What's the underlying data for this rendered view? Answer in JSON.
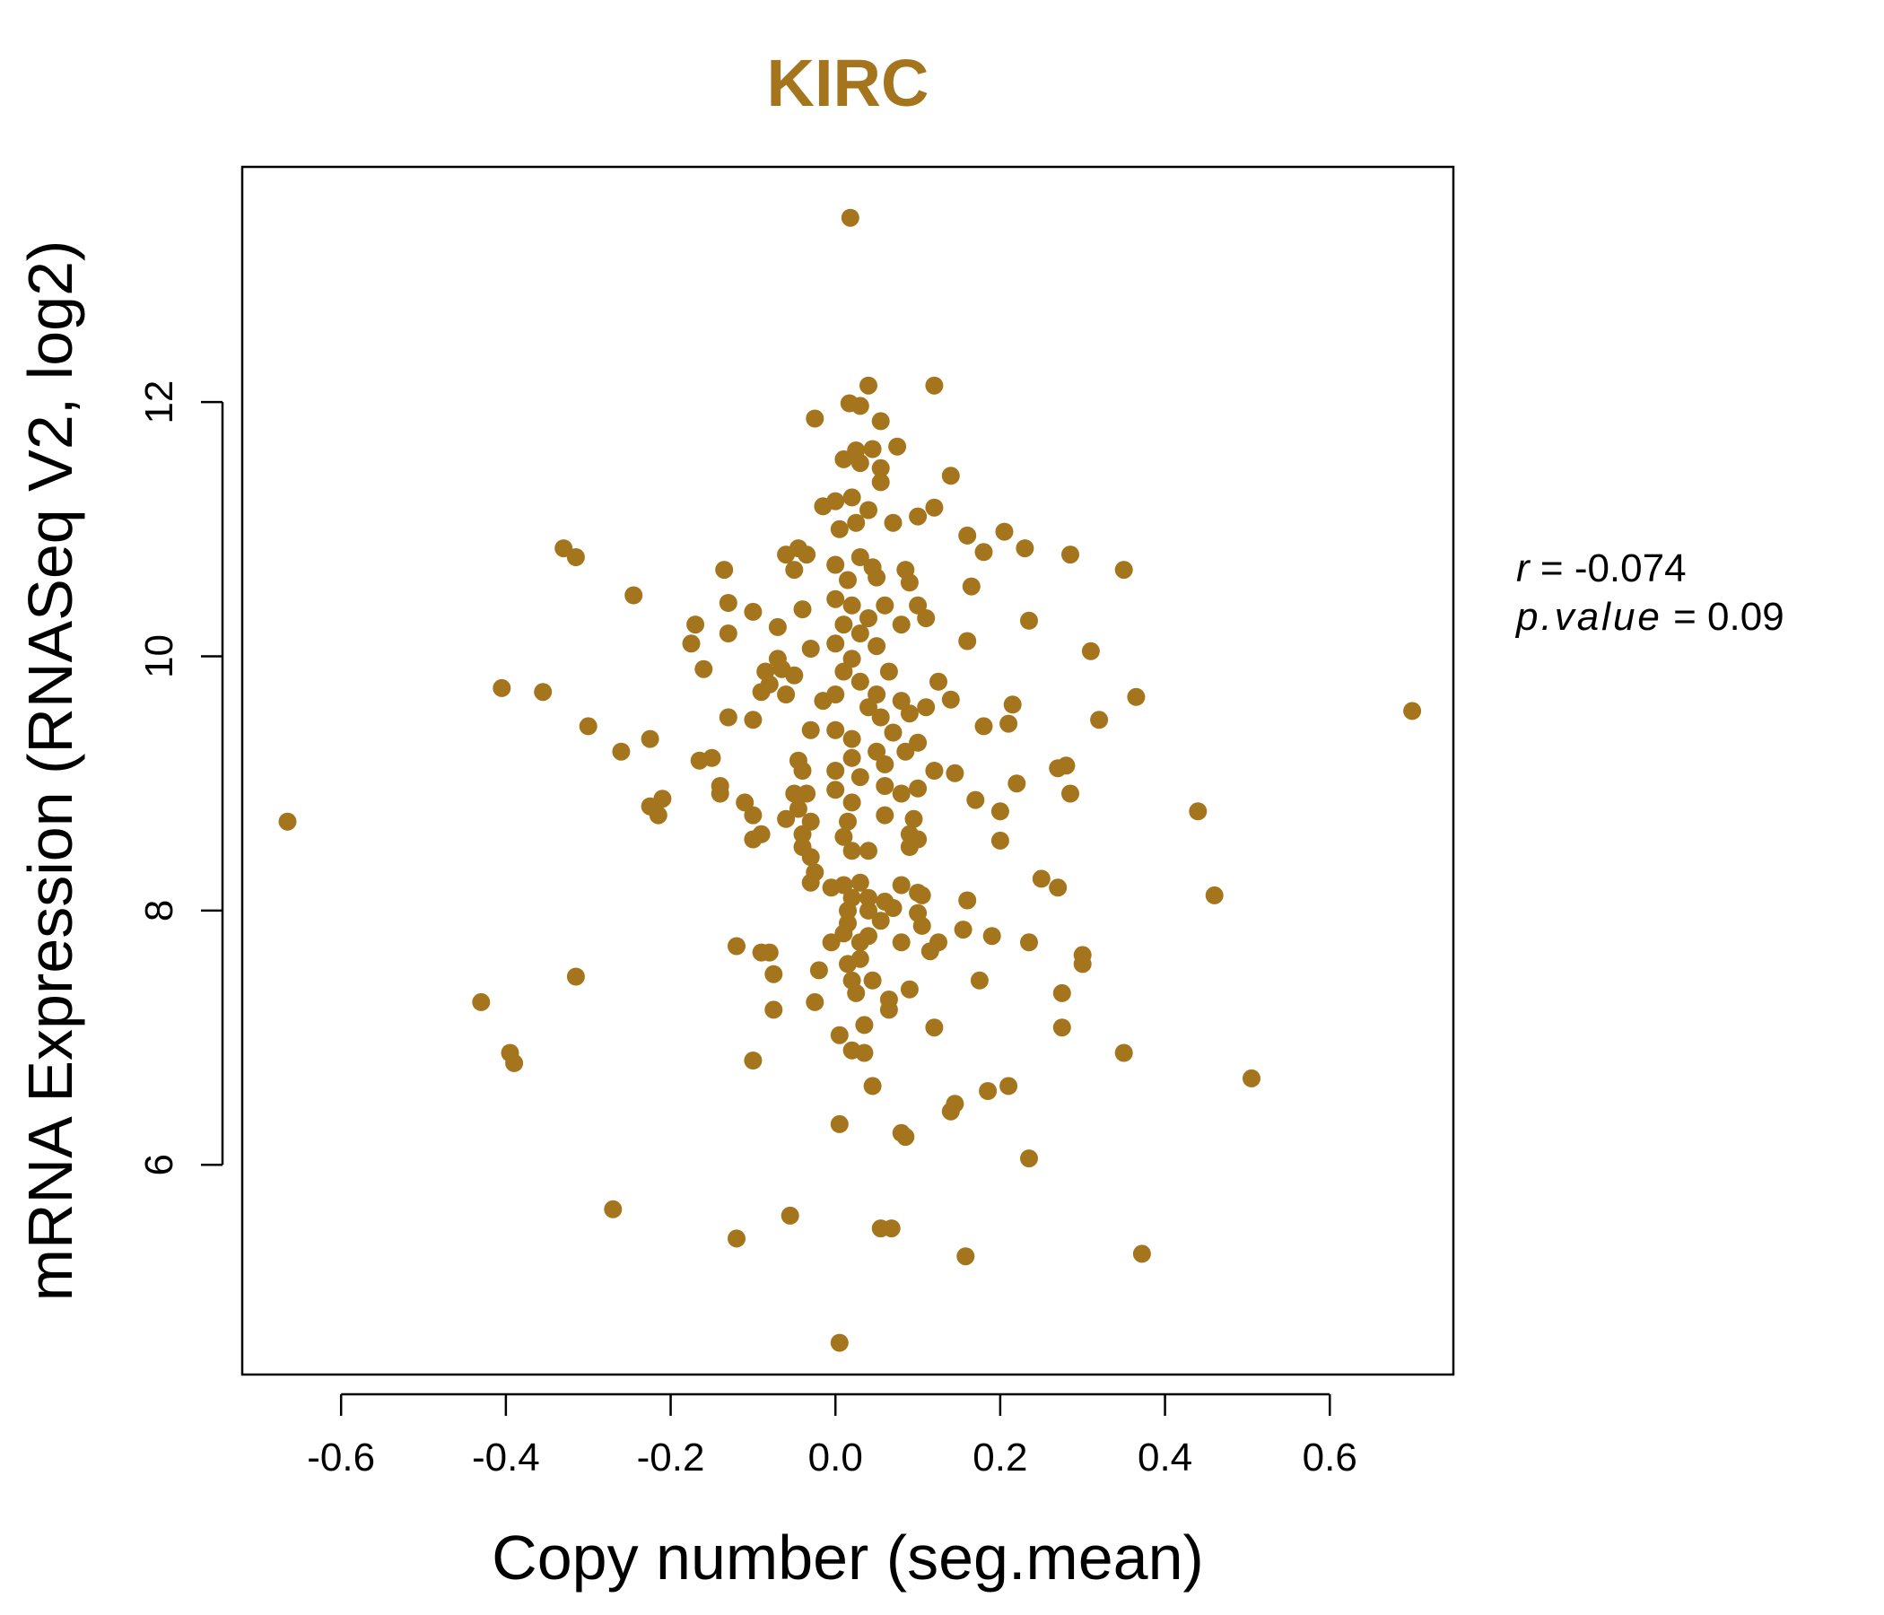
{
  "accent_color": "#A5751E",
  "chart_data": {
    "type": "scatter",
    "title": "KIRC",
    "xlabel": "Copy number (seg.mean)",
    "ylabel": "mRNA Expression (RNASeq V2, log2)",
    "xlim": [
      -0.72,
      0.75
    ],
    "ylim": [
      4.35,
      13.85
    ],
    "xticks": [
      -0.6,
      -0.4,
      -0.2,
      0.0,
      0.2,
      0.4,
      0.6
    ],
    "xtick_labels": [
      "-0.6",
      "-0.4",
      "-0.2",
      "0.0",
      "0.2",
      "0.4",
      "0.6"
    ],
    "yticks": [
      6,
      8,
      10,
      12
    ],
    "ytick_labels": [
      "6",
      "8",
      "10",
      "12"
    ],
    "grid": false,
    "stats": {
      "r_label": "r",
      "r_value": "-0.074",
      "p_label": "p.value",
      "p_value": "0.09"
    },
    "series": [
      {
        "color": "#A5751E",
        "points": [
          [
            0.018,
            13.45
          ],
          [
            0.04,
            12.13
          ],
          [
            0.12,
            12.13
          ],
          [
            0.017,
            11.99
          ],
          [
            0.03,
            11.97
          ],
          [
            -0.025,
            11.87
          ],
          [
            0.055,
            11.85
          ],
          [
            0.025,
            11.62
          ],
          [
            0.045,
            11.63
          ],
          [
            0.075,
            11.65
          ],
          [
            0.01,
            11.55
          ],
          [
            0.03,
            11.52
          ],
          [
            0.055,
            11.48
          ],
          [
            0.055,
            11.37
          ],
          [
            0.14,
            11.42
          ],
          [
            0.0,
            11.22
          ],
          [
            0.02,
            11.25
          ],
          [
            0.04,
            11.15
          ],
          [
            -0.015,
            11.18
          ],
          [
            0.12,
            11.17
          ],
          [
            0.1,
            11.1
          ],
          [
            0.07,
            11.05
          ],
          [
            0.025,
            11.05
          ],
          [
            0.005,
            11.0
          ],
          [
            0.205,
            10.98
          ],
          [
            0.16,
            10.95
          ],
          [
            -0.33,
            10.85
          ],
          [
            -0.315,
            10.78
          ],
          [
            -0.035,
            10.8
          ],
          [
            0.18,
            10.82
          ],
          [
            0.23,
            10.85
          ],
          [
            0.285,
            10.8
          ],
          [
            -0.06,
            10.8
          ],
          [
            -0.045,
            10.85
          ],
          [
            0.03,
            10.78
          ],
          [
            0.0,
            10.72
          ],
          [
            0.045,
            10.7
          ],
          [
            -0.135,
            10.68
          ],
          [
            -0.05,
            10.68
          ],
          [
            0.085,
            10.68
          ],
          [
            0.35,
            10.68
          ],
          [
            0.015,
            10.6
          ],
          [
            0.05,
            10.62
          ],
          [
            0.09,
            10.58
          ],
          [
            0.165,
            10.55
          ],
          [
            -0.245,
            10.48
          ],
          [
            -0.13,
            10.42
          ],
          [
            0.0,
            10.45
          ],
          [
            0.02,
            10.4
          ],
          [
            0.06,
            10.4
          ],
          [
            0.1,
            10.4
          ],
          [
            -0.04,
            10.37
          ],
          [
            -0.1,
            10.35
          ],
          [
            0.04,
            10.3
          ],
          [
            0.11,
            10.3
          ],
          [
            0.235,
            10.28
          ],
          [
            -0.17,
            10.25
          ],
          [
            -0.07,
            10.23
          ],
          [
            0.01,
            10.25
          ],
          [
            0.08,
            10.25
          ],
          [
            -0.13,
            10.18
          ],
          [
            0.03,
            10.18
          ],
          [
            -0.175,
            10.1
          ],
          [
            0.16,
            10.12
          ],
          [
            0.0,
            10.1
          ],
          [
            -0.03,
            10.06
          ],
          [
            0.05,
            10.08
          ],
          [
            0.31,
            10.04
          ],
          [
            -0.07,
            9.98
          ],
          [
            0.02,
            9.98
          ],
          [
            -0.16,
            9.9
          ],
          [
            -0.085,
            9.88
          ],
          [
            -0.065,
            9.9
          ],
          [
            -0.05,
            9.85
          ],
          [
            0.01,
            9.88
          ],
          [
            0.065,
            9.88
          ],
          [
            -0.08,
            9.78
          ],
          [
            0.03,
            9.8
          ],
          [
            0.125,
            9.8
          ],
          [
            -0.405,
            9.75
          ],
          [
            -0.355,
            9.72
          ],
          [
            -0.09,
            9.72
          ],
          [
            -0.06,
            9.7
          ],
          [
            0.0,
            9.7
          ],
          [
            0.05,
            9.7
          ],
          [
            0.14,
            9.66
          ],
          [
            0.365,
            9.68
          ],
          [
            -0.015,
            9.65
          ],
          [
            0.08,
            9.65
          ],
          [
            0.215,
            9.62
          ],
          [
            0.11,
            9.6
          ],
          [
            0.7,
            9.57
          ],
          [
            0.04,
            9.6
          ],
          [
            -0.13,
            9.52
          ],
          [
            -0.1,
            9.5
          ],
          [
            0.055,
            9.52
          ],
          [
            0.09,
            9.55
          ],
          [
            0.32,
            9.5
          ],
          [
            -0.3,
            9.45
          ],
          [
            0.18,
            9.45
          ],
          [
            0.21,
            9.47
          ],
          [
            0.0,
            9.42
          ],
          [
            -0.03,
            9.42
          ],
          [
            0.07,
            9.4
          ],
          [
            -0.225,
            9.35
          ],
          [
            0.02,
            9.35
          ],
          [
            0.1,
            9.32
          ],
          [
            -0.26,
            9.25
          ],
          [
            0.05,
            9.25
          ],
          [
            0.085,
            9.25
          ],
          [
            -0.15,
            9.2
          ],
          [
            -0.165,
            9.18
          ],
          [
            0.02,
            9.2
          ],
          [
            -0.045,
            9.18
          ],
          [
            0.06,
            9.15
          ],
          [
            0.27,
            9.12
          ],
          [
            0.28,
            9.14
          ],
          [
            -0.04,
            9.1
          ],
          [
            0.0,
            9.1
          ],
          [
            0.12,
            9.1
          ],
          [
            0.145,
            9.08
          ],
          [
            0.03,
            9.05
          ],
          [
            -0.14,
            8.98
          ],
          [
            0.06,
            8.98
          ],
          [
            0.1,
            8.96
          ],
          [
            0.22,
            9.0
          ],
          [
            -0.14,
            8.92
          ],
          [
            -0.05,
            8.92
          ],
          [
            -0.035,
            8.92
          ],
          [
            0.0,
            8.95
          ],
          [
            0.08,
            8.92
          ],
          [
            0.285,
            8.92
          ],
          [
            -0.21,
            8.88
          ],
          [
            -0.225,
            8.82
          ],
          [
            -0.11,
            8.85
          ],
          [
            0.17,
            8.87
          ],
          [
            0.02,
            8.85
          ],
          [
            -0.215,
            8.75
          ],
          [
            -0.1,
            8.75
          ],
          [
            -0.045,
            8.8
          ],
          [
            0.2,
            8.78
          ],
          [
            0.44,
            8.78
          ],
          [
            -0.06,
            8.72
          ],
          [
            -0.03,
            8.7
          ],
          [
            0.06,
            8.75
          ],
          [
            0.015,
            8.7
          ],
          [
            0.095,
            8.72
          ],
          [
            -0.665,
            8.7
          ],
          [
            -0.09,
            8.6
          ],
          [
            -0.04,
            8.6
          ],
          [
            0.09,
            8.6
          ],
          [
            -0.1,
            8.56
          ],
          [
            0.01,
            8.58
          ],
          [
            0.1,
            8.56
          ],
          [
            0.2,
            8.55
          ],
          [
            -0.04,
            8.5
          ],
          [
            0.09,
            8.5
          ],
          [
            0.02,
            8.47
          ],
          [
            0.04,
            8.47
          ],
          [
            -0.03,
            8.42
          ],
          [
            -0.025,
            8.3
          ],
          [
            0.25,
            8.25
          ],
          [
            -0.03,
            8.22
          ],
          [
            0.01,
            8.2
          ],
          [
            0.03,
            8.22
          ],
          [
            0.08,
            8.2
          ],
          [
            -0.005,
            8.18
          ],
          [
            0.27,
            8.18
          ],
          [
            0.1,
            8.14
          ],
          [
            0.105,
            8.12
          ],
          [
            0.46,
            8.12
          ],
          [
            0.02,
            8.1
          ],
          [
            0.04,
            8.1
          ],
          [
            0.06,
            8.07
          ],
          [
            0.16,
            8.08
          ],
          [
            0.015,
            8.0
          ],
          [
            0.04,
            8.0
          ],
          [
            0.07,
            8.02
          ],
          [
            0.1,
            7.98
          ],
          [
            0.015,
            7.9
          ],
          [
            0.055,
            7.92
          ],
          [
            0.105,
            7.88
          ],
          [
            0.155,
            7.85
          ],
          [
            0.19,
            7.8
          ],
          [
            0.01,
            7.82
          ],
          [
            0.04,
            7.8
          ],
          [
            -0.005,
            7.75
          ],
          [
            0.03,
            7.75
          ],
          [
            0.08,
            7.75
          ],
          [
            0.125,
            7.75
          ],
          [
            -0.12,
            7.72
          ],
          [
            0.235,
            7.75
          ],
          [
            -0.09,
            7.67
          ],
          [
            -0.08,
            7.67
          ],
          [
            0.115,
            7.68
          ],
          [
            0.3,
            7.65
          ],
          [
            0.03,
            7.62
          ],
          [
            0.015,
            7.58
          ],
          [
            0.3,
            7.58
          ],
          [
            -0.02,
            7.53
          ],
          [
            -0.075,
            7.5
          ],
          [
            -0.315,
            7.48
          ],
          [
            0.02,
            7.45
          ],
          [
            0.045,
            7.45
          ],
          [
            0.175,
            7.45
          ],
          [
            0.09,
            7.38
          ],
          [
            0.275,
            7.35
          ],
          [
            0.025,
            7.35
          ],
          [
            0.065,
            7.3
          ],
          [
            -0.43,
            7.28
          ],
          [
            -0.025,
            7.28
          ],
          [
            0.065,
            7.22
          ],
          [
            -0.075,
            7.22
          ],
          [
            0.035,
            7.1
          ],
          [
            0.12,
            7.08
          ],
          [
            0.275,
            7.08
          ],
          [
            0.005,
            7.02
          ],
          [
            0.02,
            6.9
          ],
          [
            0.035,
            6.88
          ],
          [
            -0.395,
            6.88
          ],
          [
            0.35,
            6.88
          ],
          [
            -0.39,
            6.8
          ],
          [
            -0.1,
            6.82
          ],
          [
            0.505,
            6.68
          ],
          [
            0.045,
            6.62
          ],
          [
            0.21,
            6.62
          ],
          [
            0.185,
            6.58
          ],
          [
            0.145,
            6.48
          ],
          [
            0.14,
            6.42
          ],
          [
            0.005,
            6.32
          ],
          [
            0.08,
            6.25
          ],
          [
            0.085,
            6.22
          ],
          [
            0.235,
            6.05
          ],
          [
            -0.27,
            5.65
          ],
          [
            -0.055,
            5.6
          ],
          [
            0.055,
            5.5
          ],
          [
            0.068,
            5.5
          ],
          [
            -0.12,
            5.42
          ],
          [
            0.158,
            5.28
          ],
          [
            0.372,
            5.3
          ],
          [
            0.005,
            4.6
          ]
        ]
      }
    ]
  }
}
